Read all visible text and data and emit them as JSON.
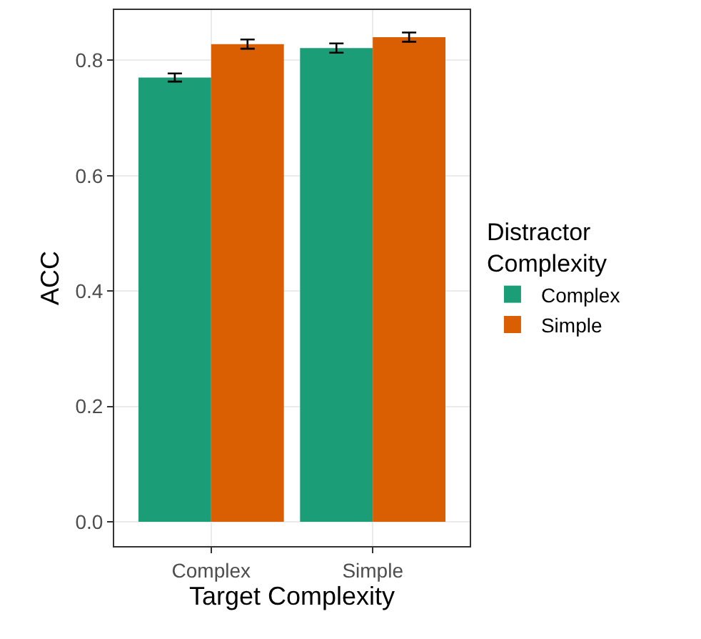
{
  "chart_data": {
    "type": "bar",
    "xlabel": "Target Complexity",
    "ylabel": "ACC",
    "legend_title": "Distractor\nComplexity",
    "categories": [
      "Complex",
      "Simple"
    ],
    "series": [
      {
        "name": "Complex",
        "color": "#1b9e77",
        "values": [
          0.77,
          0.821
        ],
        "errors": [
          0.007,
          0.008
        ]
      },
      {
        "name": "Simple",
        "color": "#d95f02",
        "values": [
          0.828,
          0.84
        ],
        "errors": [
          0.008,
          0.008
        ]
      }
    ],
    "ylim": [
      -0.042,
      0.887
    ],
    "yticks": [
      {
        "value": 0,
        "label": "0.0"
      },
      0.2,
      0.4,
      0.6,
      0.8
    ],
    "grid": true,
    "legend": "right"
  }
}
